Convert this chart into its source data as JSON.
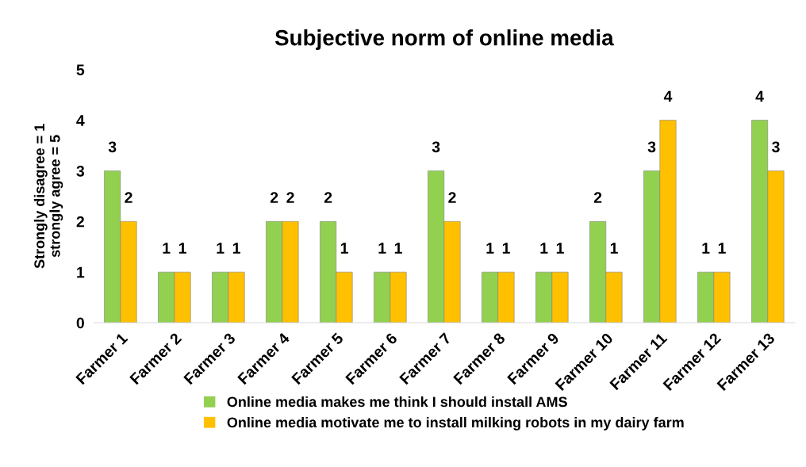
{
  "chart_data": {
    "type": "bar",
    "title": "Subjective norm of online media",
    "ylabel": "Strongly disagree = 1\nstrongly agree = 5",
    "categories": [
      "Farmer 1",
      "Farmer 2",
      "Farmer 3",
      "Farmer 4",
      "Farmer 5",
      "Farmer 6",
      "Farmer 7",
      "Farmer 8",
      "Farmer 9",
      "Farmer 10",
      "Farmer 11",
      "Farmer 12",
      "Farmer 13"
    ],
    "series": [
      {
        "name": "Online media makes me think I should install AMS",
        "color": "#92d050",
        "values": [
          3,
          1,
          1,
          2,
          2,
          1,
          3,
          1,
          1,
          2,
          3,
          1,
          4
        ]
      },
      {
        "name": "Online media motivate me to install milking robots in my dairy farm",
        "color": "#ffc000",
        "values": [
          2,
          1,
          1,
          2,
          1,
          1,
          2,
          1,
          1,
          1,
          4,
          1,
          3
        ]
      }
    ],
    "ylim": [
      0,
      5
    ],
    "yticks": [
      0,
      1,
      2,
      3,
      4,
      5
    ],
    "grid": false,
    "legend": "bottom",
    "data_labels": true
  }
}
